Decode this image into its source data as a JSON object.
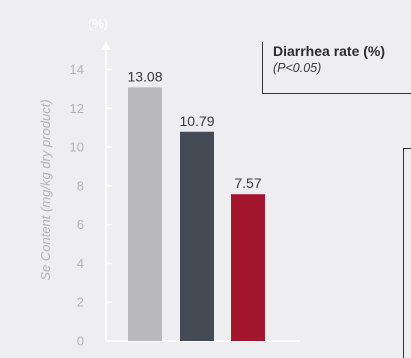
{
  "chart_data": {
    "type": "bar",
    "categories": [
      "",
      "",
      ""
    ],
    "values": [
      13.08,
      10.79,
      7.57
    ],
    "value_labels": [
      "13.08",
      "10.79",
      "7.57"
    ],
    "colors": [
      "#b9b9bc",
      "#434b55",
      "#a4162e"
    ],
    "ylabel": "Se Content (mg/kg dry product)",
    "yunit": "(%)",
    "ylim": [
      0,
      14
    ],
    "yticks": [
      0,
      2,
      4,
      6,
      8,
      10,
      12,
      14
    ],
    "ytick_labels": [
      "0",
      "2",
      "4",
      "6",
      "8",
      "10",
      "12",
      "14"
    ],
    "grid": false,
    "annotation": {
      "title": "Diarrhea rate (%)",
      "subtitle": "(P<0.05)"
    }
  }
}
